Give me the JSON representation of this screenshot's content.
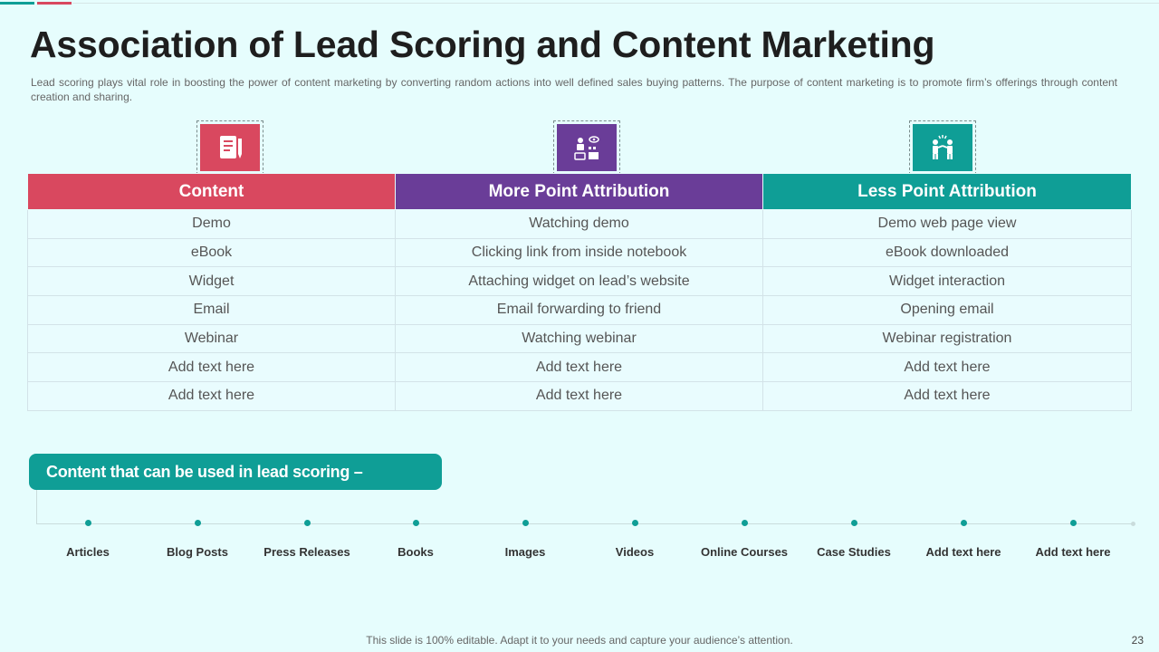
{
  "slide": {
    "title": "Association of Lead Scoring and Content Marketing",
    "subtitle": "Lead scoring plays vital role in boosting the power of content marketing by converting random actions into well defined sales buying patterns. The purpose of content marketing is to promote firm’s offerings through content creation and sharing.",
    "footer": "This slide is 100% editable. Adapt it to your needs and capture your audience’s attention.",
    "page_number": "23"
  },
  "colors": {
    "red": "#d9485f",
    "purple": "#6a3d98",
    "teal": "#0f9e96"
  },
  "icons": [
    "document-pen-icon",
    "content-creation-icon",
    "people-interaction-icon"
  ],
  "table": {
    "headers": [
      "Content",
      "More Point Attribution",
      "Less Point Attribution"
    ],
    "rows": [
      [
        "Demo",
        "Watching demo",
        "Demo web page view"
      ],
      [
        "eBook",
        "Clicking link from inside notebook",
        "eBook downloaded"
      ],
      [
        "Widget",
        "Attaching widget on lead’s website",
        "Widget interaction"
      ],
      [
        "Email",
        "Email forwarding to friend",
        "Opening email"
      ],
      [
        "Webinar",
        "Watching webinar",
        "Webinar registration"
      ],
      [
        "Add text here",
        "Add text here",
        "Add text here"
      ],
      [
        "Add text here",
        "Add text here",
        "Add text here"
      ]
    ]
  },
  "timeline": {
    "title": "Content that can be used in lead scoring –",
    "items": [
      "Articles",
      "Blog Posts",
      "Press Releases",
      "Books",
      "Images",
      "Videos",
      "Online Courses",
      "Case Studies",
      "Add text here",
      "Add text here"
    ]
  }
}
